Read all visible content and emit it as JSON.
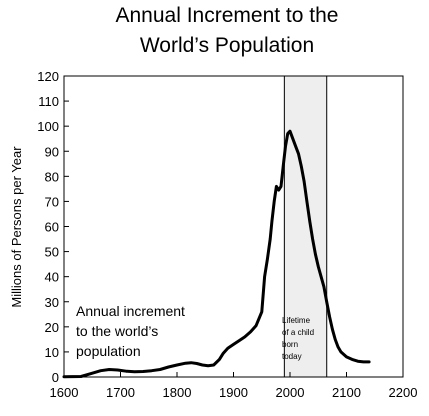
{
  "chart_data": {
    "type": "line",
    "title_lines": [
      "Annual Increment to the",
      "World’s Population"
    ],
    "xlabel": "",
    "ylabel": "Millions of Persons per Year",
    "xlim": [
      1600,
      2200
    ],
    "ylim": [
      0,
      120
    ],
    "xticks": [
      1600,
      1700,
      1800,
      1900,
      2000,
      2100,
      2200
    ],
    "yticks": [
      0,
      10,
      20,
      30,
      40,
      50,
      60,
      70,
      80,
      90,
      100,
      110,
      120
    ],
    "grid": false,
    "series": [
      {
        "color": "#000000",
        "x": [
          1600,
          1630,
          1650,
          1665,
          1680,
          1695,
          1710,
          1725,
          1740,
          1755,
          1770,
          1785,
          1800,
          1815,
          1825,
          1835,
          1845,
          1855,
          1865,
          1875,
          1882,
          1890,
          1900,
          1910,
          1920,
          1930,
          1940,
          1950,
          1955,
          1960,
          1965,
          1968,
          1972,
          1976,
          1980,
          1984,
          1988,
          1992,
          1996,
          2000,
          2005,
          2010,
          2015,
          2020,
          2025,
          2030,
          2035,
          2040,
          2045,
          2050,
          2055,
          2060,
          2065,
          2070,
          2075,
          2080,
          2085,
          2090,
          2100,
          2110,
          2120,
          2130,
          2140
        ],
        "y": [
          0.1,
          0.2,
          1.5,
          2.5,
          3,
          2.8,
          2.3,
          2.1,
          2.2,
          2.5,
          3,
          4,
          4.8,
          5.5,
          5.7,
          5.4,
          4.8,
          4.5,
          4.8,
          7,
          9.5,
          11.5,
          13,
          14.5,
          16,
          18,
          20.5,
          26,
          40,
          47,
          55,
          62,
          70,
          76,
          74.5,
          76,
          84,
          92,
          97,
          98,
          95,
          92,
          89,
          84,
          78,
          70,
          62,
          55,
          49,
          44,
          40,
          36,
          30,
          24,
          19,
          15,
          12,
          10,
          8,
          7,
          6.3,
          6,
          6
        ]
      }
    ],
    "shaded_region": {
      "x0": 1990,
      "x1": 2065,
      "color": "#eeeeee"
    },
    "annotations": {
      "left_text": [
        "Annual increment",
        "to the world’s",
        "population"
      ],
      "band_text": [
        "Lifetime",
        "of a child",
        "born",
        "today"
      ]
    }
  }
}
